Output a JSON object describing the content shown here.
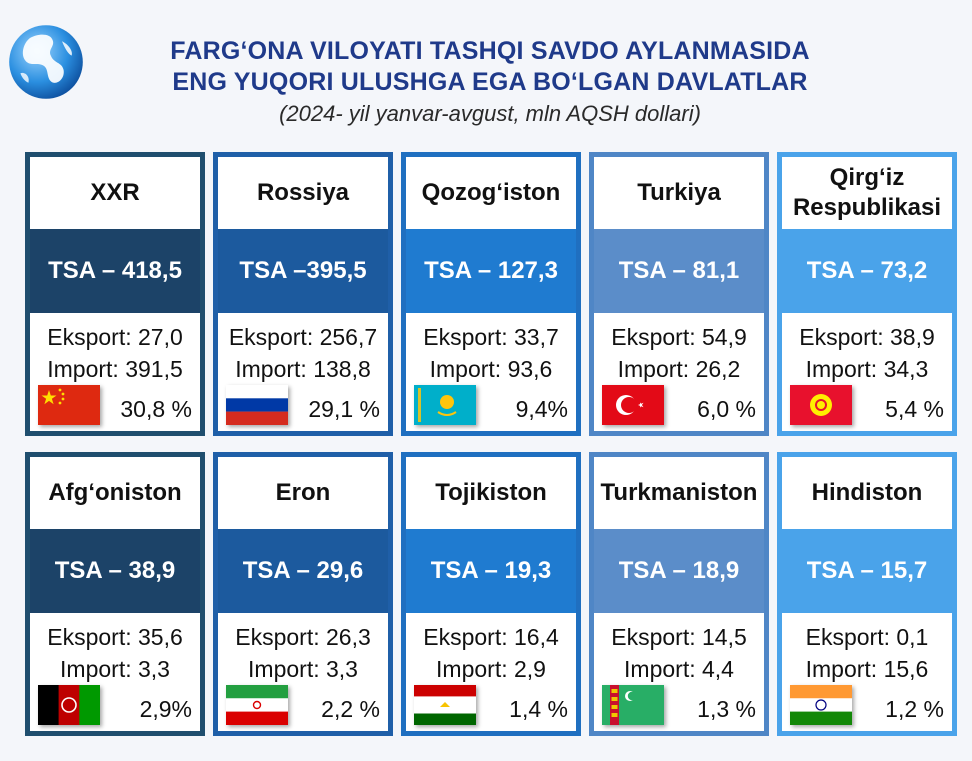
{
  "header": {
    "title_line1": "FARG‘ONA VILOYATI TASHQI SAVDO AYLANMASIDA",
    "title_line2": "ENG YUQORI ULUSHGA EGA BO‘LGAN DAVLATLAR",
    "subtitle": "(2024- yil yanvar-avgust, mln AQSH dollari)"
  },
  "colors": {
    "title": "#1f3a8a",
    "column_1": "#1c4368",
    "column_2": "#1c5a9e",
    "column_3": "#1f7bd0",
    "column_4": "#5b8dc9",
    "column_5": "#4aa3ea"
  },
  "countries": [
    {
      "name": "XXR",
      "tsa": "TSA – 418,5",
      "eksport": "Eksport: 27,0",
      "import": "Import: 391,5",
      "share": "30,8 %",
      "flag_icon": "china-flag-icon"
    },
    {
      "name": "Rossiya",
      "tsa": "TSA –395,5",
      "eksport": "Eksport: 256,7",
      "import": "Import: 138,8",
      "share": "29,1 %",
      "flag_icon": "russia-flag-icon"
    },
    {
      "name": "Qozog‘iston",
      "tsa": "TSA – 127,3",
      "eksport": "Eksport: 33,7",
      "import": "Import: 93,6",
      "share": "9,4%",
      "flag_icon": "kazakhstan-flag-icon"
    },
    {
      "name": "Turkiya",
      "tsa": "TSA – 81,1",
      "eksport": "Eksport: 54,9",
      "import": "Import: 26,2",
      "share": "6,0 %",
      "flag_icon": "turkey-flag-icon"
    },
    {
      "name": "Qirg‘iz Respublikasi",
      "tsa": "TSA – 73,2",
      "eksport": "Eksport: 38,9",
      "import": "Import: 34,3",
      "share": "5,4 %",
      "flag_icon": "kyrgyzstan-flag-icon"
    },
    {
      "name": "Afg‘oniston",
      "tsa": "TSA – 38,9",
      "eksport": "Eksport: 35,6",
      "import": "Import: 3,3",
      "share": "2,9%",
      "flag_icon": "afghanistan-flag-icon"
    },
    {
      "name": "Eron",
      "tsa": "TSA – 29,6",
      "eksport": "Eksport: 26,3",
      "import": "Import: 3,3",
      "share": "2,2 %",
      "flag_icon": "iran-flag-icon"
    },
    {
      "name": "Tojikiston",
      "tsa": "TSA – 19,3",
      "eksport": "Eksport: 16,4",
      "import": "Import: 2,9",
      "share": "1,4 %",
      "flag_icon": "tajikistan-flag-icon"
    },
    {
      "name": "Turkmaniston",
      "tsa": "TSA – 18,9",
      "eksport": "Eksport: 14,5",
      "import": "Import: 4,4",
      "share": "1,3 %",
      "flag_icon": "turkmenistan-flag-icon"
    },
    {
      "name": "Hindiston",
      "tsa": "TSA – 15,7",
      "eksport": "Eksport: 0,1",
      "import": "Import: 15,6",
      "share": "1,2 %",
      "flag_icon": "india-flag-icon"
    }
  ]
}
